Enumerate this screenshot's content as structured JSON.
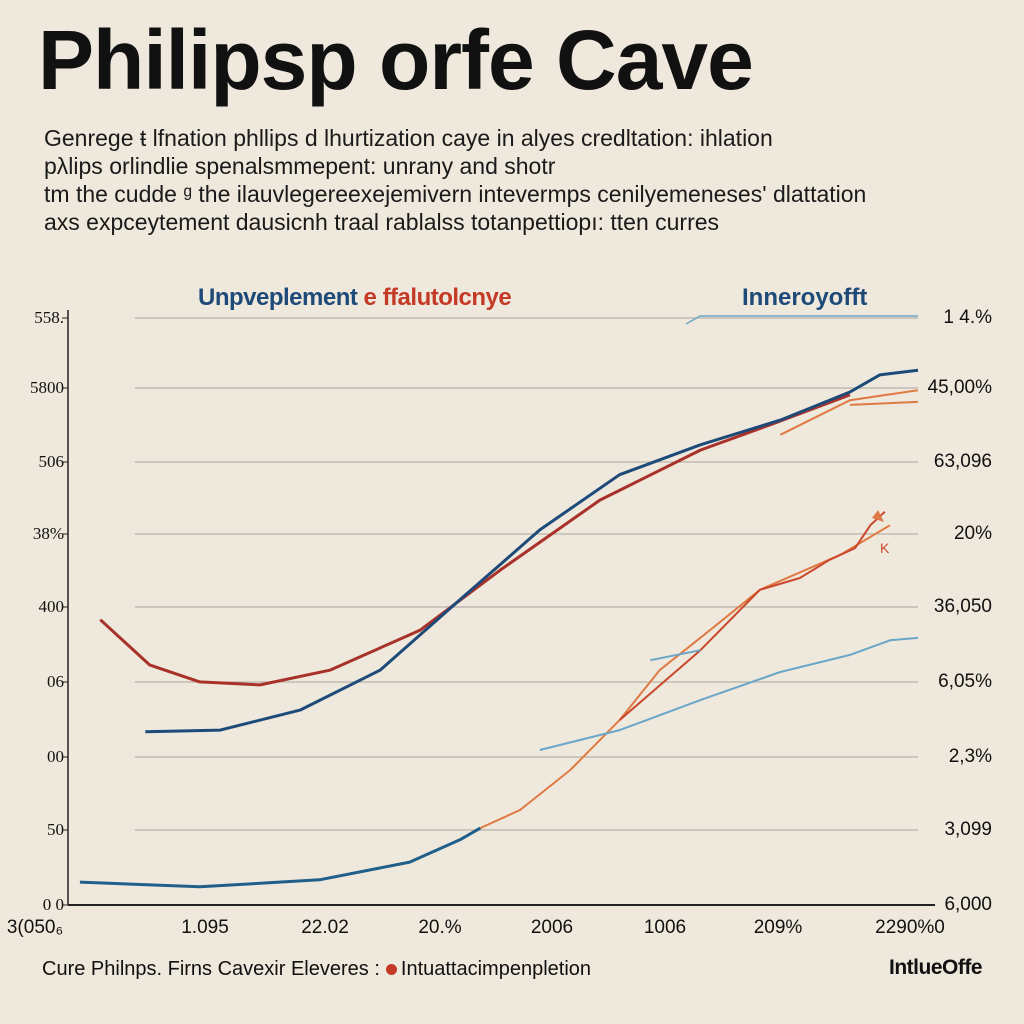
{
  "title": "Philipsp orfe Cave",
  "subtitle_lines": [
    "Genrege ŧ lfnation phllips d lhurtization caye in alyes credltation: ihlation",
    "pλlips orlindlie spenalsmmepent: unrany and shotr",
    "tm the cudde ᶢ the ilauvlegereexejemivern intevermps cenilyemeneses' dlattation",
    "axs expceytement dausicnh traal rablalss totanpettiopı: tten curres"
  ],
  "legend": {
    "left_a": "Unpveplement",
    "left_b": "e ffalutolcnye",
    "right": "Inneroyofft"
  },
  "footer": {
    "caption": "Cure Philnps. Firns Cavexir Eleveres :",
    "legend_item": "Intuattacimpenpletion",
    "brand": "IntlueOffe"
  },
  "colors": {
    "background": "#efe8dc",
    "dark_red": "#a8322a",
    "dark_blue": "#1d4a78",
    "orange": "#e07a45",
    "red_orange": "#c9472b",
    "light_blue": "#6aa6c8"
  },
  "chart_data": {
    "type": "line",
    "title": "Philipsp orfe Cave",
    "xlim": [
      0,
      100
    ],
    "ylim": [
      0,
      100
    ],
    "grid": true,
    "legend_placement": "top",
    "y_ticks_left": [
      "558.",
      "5800",
      "506",
      "38%",
      "400",
      "06",
      "00",
      "50",
      "0 0"
    ],
    "y_ticks_right": [
      "1 4.%",
      "45,00%",
      "63,096",
      "20%",
      "36,050",
      "6,05%",
      "2,3%",
      "3,099",
      "6,000"
    ],
    "x_ticks": [
      "3(050₆",
      "1.095",
      "22.02",
      "20.%",
      "2006",
      "1006",
      "209%",
      "2290%0"
    ],
    "series": [
      {
        "color": "#a8322a",
        "x": [
          3.8,
          9.6,
          15.5,
          22.6,
          30.8,
          41.4,
          50.8,
          62.6,
          74.4,
          82.6,
          92.0
        ],
        "y": [
          48.6,
          40.9,
          38.0,
          37.5,
          40.0,
          46.8,
          57.0,
          69.0,
          77.5,
          81.8,
          86.9
        ]
      },
      {
        "color": "#1d4a78",
        "x": [
          9.1,
          17.9,
          27.3,
          36.7,
          46.1,
          55.5,
          64.9,
          74.4,
          83.8,
          92.0,
          95.5,
          100
        ],
        "y": [
          29.5,
          29.8,
          33.2,
          40.0,
          52.0,
          63.9,
          73.3,
          78.4,
          82.6,
          87.4,
          90.3,
          91.1
        ]
      },
      {
        "color": "#1f5f8a",
        "x": [
          1.4,
          15.5,
          29.6,
          40.2,
          46.1,
          48.5
        ],
        "y": [
          3.9,
          3.1,
          4.3,
          7.3,
          11.1,
          13.1
        ]
      },
      {
        "color": "#e07a45",
        "x": [
          48.5,
          53.2,
          59.1,
          64.9,
          69.6,
          75.5,
          81.4,
          90.8,
          96.7
        ],
        "y": [
          13.1,
          16.2,
          23.0,
          31.5,
          40.0,
          46.8,
          53.7,
          59.6,
          64.7
        ]
      },
      {
        "color": "#c9472b",
        "x": [
          64.9,
          74.4,
          81.4,
          86.1,
          89.6,
          92.6,
          94.4,
          96.1
        ],
        "y": [
          31.5,
          43.4,
          53.7,
          55.7,
          58.8,
          60.8,
          64.7,
          67.0
        ]
      },
      {
        "color": "#e07a45",
        "x": [
          83.8,
          92.0,
          100
        ],
        "y": [
          80.1,
          86.0,
          87.7
        ]
      },
      {
        "color": "#e07a45",
        "x": [
          92.0,
          100
        ],
        "y": [
          85.2,
          85.7
        ]
      },
      {
        "color": "#6aa6c8",
        "x": [
          55.5,
          64.9,
          74.4,
          83.8,
          92.0,
          96.7,
          100
        ],
        "y": [
          26.4,
          29.8,
          34.9,
          39.7,
          42.6,
          45.1,
          45.5
        ]
      },
      {
        "color": "#6aa6c8",
        "x": [
          68.5,
          74.4
        ],
        "y": [
          41.7,
          43.4
        ]
      }
    ],
    "annotations": [
      "K"
    ]
  }
}
